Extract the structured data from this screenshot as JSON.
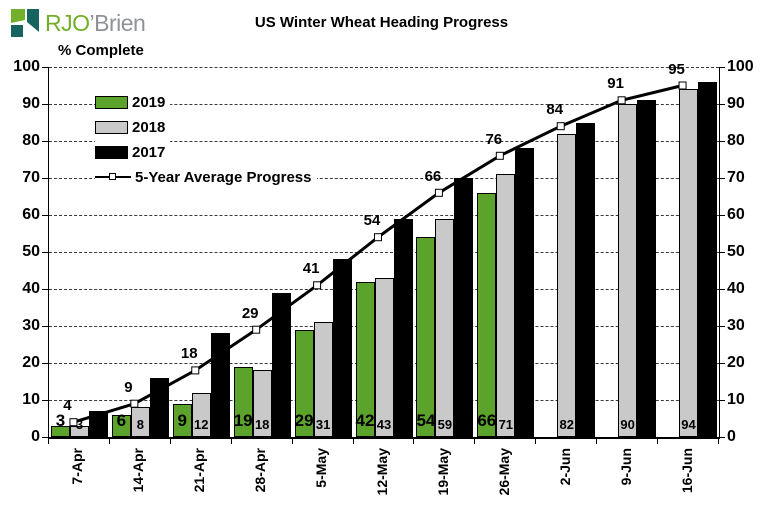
{
  "logo": {
    "brand_green": "RJO",
    "brand_gray": "’Brien"
  },
  "chart_data": {
    "type": "bar",
    "title": "US Winter Wheat Heading Progress",
    "ylabel": "% Complete",
    "ylim": [
      0,
      100
    ],
    "yticks": [
      0,
      10,
      20,
      30,
      40,
      50,
      60,
      70,
      80,
      90,
      100
    ],
    "grid": "dashed-horizontal",
    "legend_position": "top-left-inside",
    "categories": [
      "7-Apr",
      "14-Apr",
      "21-Apr",
      "28-Apr",
      "5-May",
      "12-May",
      "19-May",
      "26-May",
      "2-Jun",
      "9-Jun",
      "16-Jun"
    ],
    "series": [
      {
        "name": "2019",
        "color": "#5ba32b",
        "data_labels": true,
        "values": [
          3,
          6,
          9,
          19,
          29,
          42,
          54,
          66,
          null,
          null,
          null
        ]
      },
      {
        "name": "2018",
        "color": "#c9c9c9",
        "data_labels": true,
        "values": [
          3,
          8,
          12,
          18,
          31,
          43,
          59,
          71,
          82,
          90,
          94
        ]
      },
      {
        "name": "2017",
        "color": "#000000",
        "data_labels": false,
        "values": [
          7,
          16,
          28,
          39,
          48,
          59,
          70,
          78,
          85,
          91,
          96
        ]
      }
    ],
    "line_series": {
      "name": "5-Year Average Progress",
      "color": "#000000",
      "marker": "open-square",
      "data_labels": true,
      "values": [
        4,
        9,
        18,
        29,
        41,
        54,
        66,
        76,
        84,
        91,
        95
      ]
    }
  }
}
